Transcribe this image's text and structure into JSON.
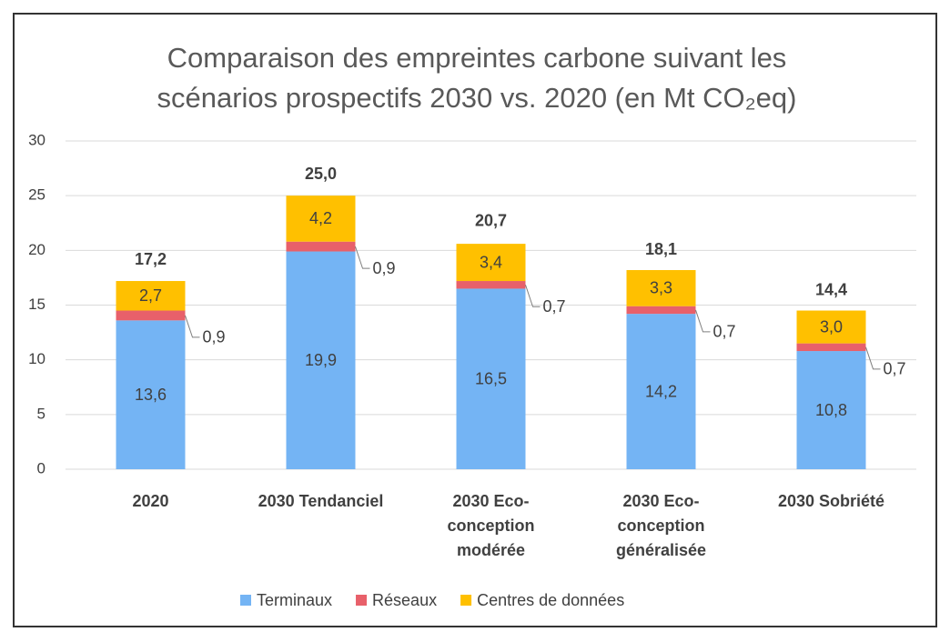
{
  "chart_data": {
    "type": "stacked_bar",
    "title": "Comparaison des empreintes carbone suivant les\nscénarios prospectifs 2030 vs. 2020 (en Mt CO₂eq)",
    "categories": [
      "2020",
      "2030 Tendanciel",
      "2030 Eco-\nconception\nmodérée",
      "2030 Eco-\nconception\ngénéralisée",
      "2030 Sobriété"
    ],
    "series": [
      {
        "name": "Terminaux",
        "color": "#74b4f4",
        "values": [
          13.6,
          19.9,
          16.5,
          14.2,
          10.8
        ],
        "value_labels": [
          "13,6",
          "19,9",
          "16,5",
          "14,2",
          "10,8"
        ]
      },
      {
        "name": "Réseaux",
        "color": "#e8606a",
        "values": [
          0.9,
          0.9,
          0.7,
          0.7,
          0.7
        ],
        "value_labels": [
          "0,9",
          "0,9",
          "0,7",
          "0,7",
          "0,7"
        ]
      },
      {
        "name": "Centres de données",
        "color": "#ffc000",
        "values": [
          2.7,
          4.2,
          3.4,
          3.3,
          3.0
        ],
        "value_labels": [
          "2,7",
          "4,2",
          "3,4",
          "3,3",
          "3,0"
        ]
      }
    ],
    "totals": [
      17.2,
      25.0,
      20.7,
      18.1,
      14.4
    ],
    "total_labels": [
      "17,2",
      "25,0",
      "20,7",
      "18,1",
      "14,4"
    ],
    "ylim": [
      0,
      30
    ],
    "yticks": [
      0,
      5,
      10,
      15,
      20,
      25,
      30
    ],
    "grid": true,
    "legend": "bottom"
  }
}
